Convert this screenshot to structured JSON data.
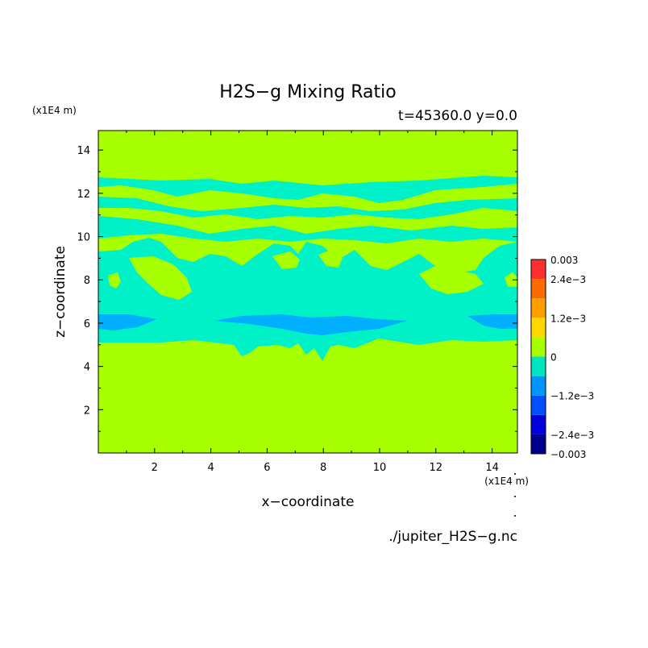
{
  "chart_data": {
    "type": "heatmap",
    "title": "H2S−g Mixing Ratio",
    "subtitle": "t=45360.0 y=0.0",
    "xlabel": "x−coordinate",
    "ylabel": "z−coordinate",
    "x_unit": "(x1E4 m)",
    "y_unit": "(x1E4 m)",
    "source_file": "./jupiter_H2S−g.nc",
    "xlim": [
      0,
      14.9
    ],
    "ylim": [
      0,
      14.9
    ],
    "x_ticks": [
      2,
      4,
      6,
      8,
      10,
      12,
      14
    ],
    "y_ticks": [
      2,
      4,
      6,
      8,
      10,
      12,
      14
    ],
    "colorbar": {
      "levels": [
        -0.003,
        -0.0024,
        -0.0018,
        -0.0012,
        -0.0006,
        0,
        0.0006,
        0.0012,
        0.0018,
        0.0024,
        0.003
      ],
      "colors": [
        "#00008c",
        "#0000d8",
        "#0050ff",
        "#0096ff",
        "#00e6c0",
        "#a8ff00",
        "#ffd800",
        "#ffa000",
        "#ff6a00",
        "#ff3030"
      ],
      "tick_labels": [
        {
          "value": 0.003,
          "label": "0.003"
        },
        {
          "value": 0.0024,
          "label": "2.4e−3"
        },
        {
          "value": 0.0012,
          "label": "1.2e−3"
        },
        {
          "value": 0,
          "label": "0"
        },
        {
          "value": -0.0012,
          "label": "−1.2e−3"
        },
        {
          "value": -0.0024,
          "label": "−2.4e−3"
        },
        {
          "value": -0.003,
          "label": "−0.003"
        }
      ]
    },
    "background_value_color": "#a8ff00",
    "band_color": "#00f0c8",
    "deep_color": "#00b0ff"
  }
}
